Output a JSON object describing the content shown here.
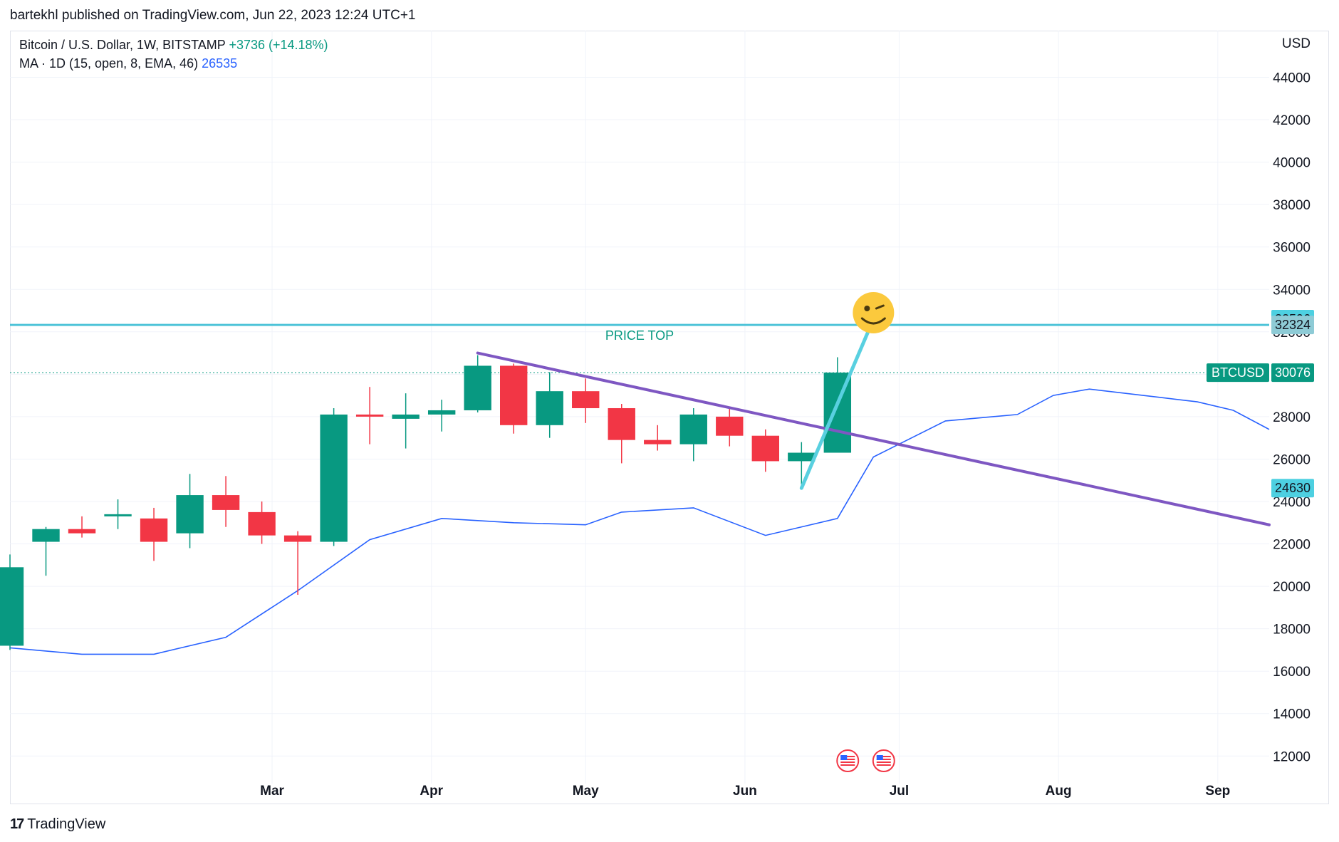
{
  "publisher_line": "bartekhl published on TradingView.com, Jun 22, 2023 12:24 UTC+1",
  "legend": {
    "symbol": "Bitcoin / U.S. Dollar, 1W, BITSTAMP",
    "change": "+3736 (+14.18%)",
    "indicator": "MA · 1D (15, open, 8, EMA, 46)",
    "indicator_value": "26535"
  },
  "footer": {
    "brand": "TradingView",
    "logo": "17"
  },
  "colors": {
    "up": "#089981",
    "down": "#f23645",
    "ma": "#2962ff",
    "trend": "#7e57c2",
    "price_top": "#4dc3d8",
    "arrow": "#59d0e0"
  },
  "chart_data": {
    "type": "candlestick",
    "currency": "USD",
    "y_ticks": [
      12000,
      14000,
      16000,
      18000,
      20000,
      22000,
      24000,
      26000,
      28000,
      30000,
      32000,
      34000,
      36000,
      38000,
      40000,
      42000,
      44000
    ],
    "x_labels": [
      {
        "label": "Mar",
        "date": "2023-03-01"
      },
      {
        "label": "Apr",
        "date": "2023-04-01"
      },
      {
        "label": "May",
        "date": "2023-05-01"
      },
      {
        "label": "Jun",
        "date": "2023-06-01"
      },
      {
        "label": "Jul",
        "date": "2023-07-01"
      },
      {
        "label": "Aug",
        "date": "2023-08-01"
      },
      {
        "label": "Sep",
        "date": "2023-09-01"
      }
    ],
    "x_range": [
      "2023-01-09",
      "2023-09-11"
    ],
    "y_range": [
      10700,
      46200
    ],
    "candles": [
      {
        "date": "2023-01-09",
        "open": 17200,
        "high": 21500,
        "low": 17000,
        "close": 20900
      },
      {
        "date": "2023-01-16",
        "open": 22100,
        "high": 22800,
        "low": 20500,
        "close": 22700
      },
      {
        "date": "2023-01-23",
        "open": 22700,
        "high": 23300,
        "low": 22300,
        "close": 22500
      },
      {
        "date": "2023-01-30",
        "open": 23300,
        "high": 24100,
        "low": 22700,
        "close": 23400
      },
      {
        "date": "2023-02-06",
        "open": 23200,
        "high": 23700,
        "low": 21200,
        "close": 22100
      },
      {
        "date": "2023-02-13",
        "open": 22500,
        "high": 25300,
        "low": 21800,
        "close": 24300
      },
      {
        "date": "2023-02-20",
        "open": 24300,
        "high": 25200,
        "low": 22800,
        "close": 23600
      },
      {
        "date": "2023-02-27",
        "open": 23500,
        "high": 24000,
        "low": 22000,
        "close": 22400
      },
      {
        "date": "2023-03-06",
        "open": 22400,
        "high": 22600,
        "low": 19600,
        "close": 22100
      },
      {
        "date": "2023-03-13",
        "open": 22100,
        "high": 28400,
        "low": 21900,
        "close": 28100
      },
      {
        "date": "2023-03-20",
        "open": 28100,
        "high": 29400,
        "low": 26700,
        "close": 28000
      },
      {
        "date": "2023-03-27",
        "open": 27900,
        "high": 29100,
        "low": 26500,
        "close": 28100
      },
      {
        "date": "2023-04-03",
        "open": 28100,
        "high": 28800,
        "low": 27300,
        "close": 28300
      },
      {
        "date": "2023-04-10",
        "open": 28300,
        "high": 30900,
        "low": 28200,
        "close": 30400
      },
      {
        "date": "2023-04-17",
        "open": 30400,
        "high": 30500,
        "low": 27200,
        "close": 27600
      },
      {
        "date": "2023-04-24",
        "open": 27600,
        "high": 30100,
        "low": 27000,
        "close": 29200
      },
      {
        "date": "2023-05-01",
        "open": 29200,
        "high": 29800,
        "low": 27700,
        "close": 28400
      },
      {
        "date": "2023-05-08",
        "open": 28400,
        "high": 28600,
        "low": 25800,
        "close": 26900
      },
      {
        "date": "2023-05-15",
        "open": 26900,
        "high": 27600,
        "low": 26400,
        "close": 26700
      },
      {
        "date": "2023-05-22",
        "open": 26700,
        "high": 28400,
        "low": 25900,
        "close": 28100
      },
      {
        "date": "2023-05-29",
        "open": 28000,
        "high": 28400,
        "low": 26600,
        "close": 27100
      },
      {
        "date": "2023-06-05",
        "open": 27100,
        "high": 27400,
        "low": 25400,
        "close": 25900
      },
      {
        "date": "2023-06-12",
        "open": 25900,
        "high": 26800,
        "low": 24800,
        "close": 26300
      },
      {
        "date": "2023-06-19",
        "open": 26300,
        "high": 30800,
        "low": 26300,
        "close": 30076
      }
    ],
    "ma_series": {
      "name": "MA · 1D (15, open, 8, EMA, 46)",
      "points": [
        {
          "date": "2023-01-09",
          "value": 17100
        },
        {
          "date": "2023-01-23",
          "value": 16800
        },
        {
          "date": "2023-02-06",
          "value": 16800
        },
        {
          "date": "2023-02-20",
          "value": 17600
        },
        {
          "date": "2023-03-06",
          "value": 19800
        },
        {
          "date": "2023-03-20",
          "value": 22200
        },
        {
          "date": "2023-04-03",
          "value": 23200
        },
        {
          "date": "2023-04-17",
          "value": 23000
        },
        {
          "date": "2023-05-01",
          "value": 22900
        },
        {
          "date": "2023-05-08",
          "value": 23500
        },
        {
          "date": "2023-05-22",
          "value": 23700
        },
        {
          "date": "2023-06-05",
          "value": 22400
        },
        {
          "date": "2023-06-19",
          "value": 23200
        },
        {
          "date": "2023-06-26",
          "value": 26100
        },
        {
          "date": "2023-07-10",
          "value": 27800
        },
        {
          "date": "2023-07-24",
          "value": 28100
        },
        {
          "date": "2023-07-31",
          "value": 29000
        },
        {
          "date": "2023-08-07",
          "value": 29300
        },
        {
          "date": "2023-08-21",
          "value": 28900
        },
        {
          "date": "2023-08-28",
          "value": 28700
        },
        {
          "date": "2023-09-04",
          "value": 28300
        },
        {
          "date": "2023-09-11",
          "value": 27400
        }
      ]
    },
    "price_top": {
      "value": 32324,
      "label": "PRICE TOP"
    },
    "last_price": {
      "symbol": "BTCUSD",
      "value": 30076
    },
    "price_labels": [
      {
        "value": 32596,
        "text": "32596"
      },
      {
        "value": 32324,
        "text": "32324"
      },
      {
        "value": 24630,
        "text": "24630"
      }
    ],
    "trendline": {
      "from": {
        "date": "2023-04-10",
        "value": 31000
      },
      "to": {
        "date": "2023-09-11",
        "value": 22900
      }
    },
    "arrow": {
      "from": {
        "date": "2023-06-12",
        "value": 24630
      },
      "to": {
        "date": "2023-06-26",
        "value": 32596
      }
    },
    "emoji": {
      "date": "2023-06-26",
      "value": 32900,
      "symbol": "🤪"
    },
    "event_flags": [
      {
        "date": "2023-06-21",
        "symbol": "🇺🇸"
      },
      {
        "date": "2023-06-28",
        "symbol": "🇺🇸"
      }
    ]
  }
}
